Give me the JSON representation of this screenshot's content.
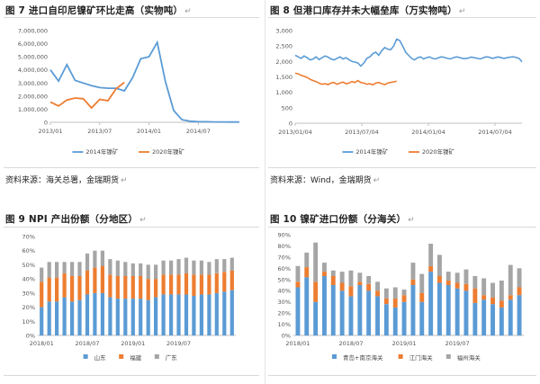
{
  "panels": {
    "fig7": {
      "caption": "图 7 进口自印尼镍矿环比走高（实物吨）",
      "arrow": "↵"
    },
    "fig8": {
      "caption": "图 8 但港口库存并未大幅垒库（万实物吨）",
      "arrow": "↵"
    },
    "fig9": {
      "caption": "图 9 NPI 产出份额（分地区）",
      "arrow": "↵"
    },
    "fig10": {
      "caption": "图 10 镍矿进口份额（分海关）",
      "arrow": "↵"
    },
    "source_left": "资料来源：海关总署，金瑞期货",
    "source_right": "资料来源：Wind，金瑞期货",
    "arrow": "↵"
  },
  "chart_data": [
    {
      "id": "fig7",
      "type": "line",
      "ylim": [
        0,
        7000000
      ],
      "yticks": [
        "0",
        "1,000,000",
        "2,000,000",
        "3,000,000",
        "4,000,000",
        "5,000,000",
        "6,000,000",
        "7,000,000"
      ],
      "xticks": [
        "2013/01",
        "2013/07",
        "2014/01",
        "2014/07"
      ],
      "months": 24,
      "series": [
        {
          "name": "2014年镍矿",
          "color": "#5b9bd5",
          "values": [
            4000000,
            3150000,
            4400000,
            3200000,
            3000000,
            2800000,
            2650000,
            2600000,
            2600000,
            2400000,
            3400000,
            4850000,
            5000000,
            6100000,
            3100000,
            900000,
            200000,
            80000,
            50000,
            40000,
            30000,
            30000,
            20000,
            20000
          ]
        },
        {
          "name": "2020年镍矿",
          "color": "#ed7d31",
          "values": [
            1550000,
            1250000,
            1700000,
            1850000,
            1800000,
            1100000,
            1750000,
            1650000,
            2550000,
            3050000
          ]
        }
      ]
    },
    {
      "id": "fig8",
      "type": "line",
      "ylim": [
        0,
        3000
      ],
      "yticks": [
        "0",
        "500",
        "1,000",
        "1,500",
        "2,000",
        "2,500",
        "3,000"
      ],
      "xticks": [
        "2013/01/04",
        "2013/07/04",
        "2014/01/04",
        "2014/07/04"
      ],
      "series": [
        {
          "name": "2014年镍矿",
          "color": "#5b9bd5",
          "values": [
            2200,
            2150,
            2100,
            2180,
            2120,
            2050,
            2080,
            2150,
            2060,
            2120,
            2180,
            2140,
            2080,
            2050,
            2100,
            2150,
            2080,
            2120,
            2060,
            2000,
            1980,
            1950,
            1850,
            1950,
            2100,
            2150,
            2250,
            2300,
            2200,
            2350,
            2450,
            2400,
            2380,
            2500,
            2720,
            2680,
            2500,
            2300,
            2200,
            2100,
            2050,
            2120,
            2150,
            2080,
            2120,
            2150,
            2100,
            2080,
            2120,
            2150,
            2130,
            2100,
            2080,
            2120,
            2150,
            2130,
            2100,
            2090,
            2110,
            2140,
            2120,
            2100,
            2080,
            2120,
            2150,
            2140,
            2100,
            2120,
            2150,
            2120,
            2100,
            2120,
            2140,
            2150,
            2130,
            2100,
            1990
          ]
        },
        {
          "name": "2020年镍矿",
          "color": "#ed7d31",
          "values": [
            1620,
            1600,
            1550,
            1520,
            1480,
            1420,
            1380,
            1350,
            1300,
            1260,
            1280,
            1250,
            1300,
            1320,
            1260,
            1300,
            1330,
            1280,
            1300,
            1350,
            1320,
            1380,
            1320,
            1300,
            1260,
            1280,
            1240,
            1300,
            1320,
            1280,
            1250,
            1300,
            1320,
            1340,
            1360
          ]
        }
      ]
    },
    {
      "id": "fig9",
      "type": "bar",
      "stacked": true,
      "ylim": [
        0,
        70
      ],
      "yticks": [
        "0%",
        "10%",
        "20%",
        "30%",
        "40%",
        "50%",
        "60%",
        "70%"
      ],
      "xticks": [
        "2018/01",
        "2018/07",
        "2019/01",
        "2019/07"
      ],
      "tick_every": 6,
      "series": [
        {
          "name": "山东",
          "color": "#5b9bd5",
          "values": [
            20,
            24,
            24,
            27,
            24,
            25,
            29,
            30,
            30,
            27,
            26,
            26,
            26,
            26,
            25,
            27,
            29,
            29,
            29,
            29,
            28,
            29,
            29,
            30,
            31,
            32
          ]
        },
        {
          "name": "福建",
          "color": "#ed7d31",
          "values": [
            18,
            17,
            17,
            17,
            18,
            17,
            17,
            18,
            19,
            16,
            16,
            16,
            16,
            16,
            15,
            13,
            14,
            14,
            14,
            15,
            15,
            14,
            14,
            14,
            14,
            14
          ]
        },
        {
          "name": "广东",
          "color": "#a5a5a5",
          "values": [
            10,
            11,
            11,
            8,
            10,
            10,
            12,
            12,
            11,
            11,
            11,
            10,
            9,
            9,
            10,
            10,
            10,
            10,
            11,
            11,
            10,
            10,
            9,
            10,
            9,
            9
          ]
        }
      ]
    },
    {
      "id": "fig10",
      "type": "bar",
      "stacked": true,
      "ylim": [
        0,
        90
      ],
      "yticks": [
        "0%",
        "10%",
        "20%",
        "30%",
        "40%",
        "50%",
        "60%",
        "70%",
        "80%",
        "90%"
      ],
      "xticks": [
        "2018/01",
        "2018/07",
        "2019/01",
        "2019/07"
      ],
      "tick_every": 6,
      "series": [
        {
          "name": "青岛+南京海关",
          "color": "#5b9bd5",
          "values": [
            43,
            52,
            30,
            53,
            45,
            40,
            35,
            45,
            40,
            35,
            28,
            25,
            30,
            45,
            30,
            57,
            47,
            45,
            42,
            40,
            29,
            32,
            28,
            25,
            32,
            36
          ]
        },
        {
          "name": "江门海关",
          "color": "#ed7d31",
          "values": [
            5,
            9,
            18,
            4,
            8,
            7,
            9,
            3,
            6,
            5,
            5,
            8,
            6,
            5,
            8,
            5,
            6,
            4,
            5,
            6,
            13,
            4,
            6,
            6,
            4,
            7
          ]
        },
        {
          "name": "福州海关",
          "color": "#a5a5a5",
          "values": [
            14,
            13,
            35,
            8,
            5,
            10,
            14,
            8,
            7,
            8,
            9,
            10,
            5,
            15,
            17,
            20,
            19,
            8,
            9,
            13,
            11,
            15,
            13,
            18,
            27,
            17
          ]
        }
      ]
    }
  ]
}
